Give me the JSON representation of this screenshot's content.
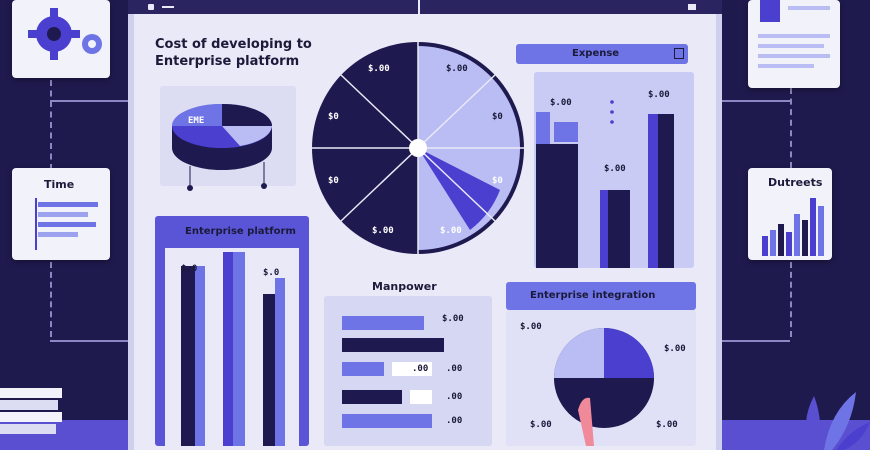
{
  "main_title_line1": "Cost of developing to",
  "main_title_line2": "Enterprise platform",
  "top_right_header": "Expense",
  "left_card_title": "Time",
  "right_card_title": "Dutreets",
  "enterprise_panel_title": "Enterprise platform",
  "manpower_title": "Manpower",
  "enterprise_integration_title": "Enterprise integration",
  "pie_left_label": "EME",
  "radial_labels": [
    "$.00",
    "$.00",
    "$0",
    "$0",
    "$0",
    "$0",
    "$.00",
    "$.00"
  ],
  "top_right_labels": [
    "$.00",
    "$.00",
    "$.00"
  ],
  "bar_left_labels": [
    "$.0",
    "$.0"
  ],
  "manpower_labels": [
    "$.00",
    ".00",
    ".00",
    ".00",
    ".00"
  ],
  "int_labels": [
    "$.00",
    "$.00",
    "$.00",
    "$.00"
  ],
  "colors": {
    "navy": "#1e1a4f",
    "indigo": "#4b3fd0",
    "periwinkle": "#6e74e6",
    "lavender": "#b9bdf3",
    "screen": "#e9e9f7"
  }
}
